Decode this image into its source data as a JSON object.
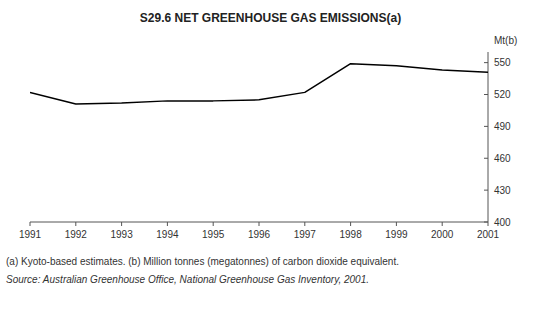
{
  "chart_data": {
    "type": "line",
    "title": "S29.6   NET GREENHOUSE GAS EMISSIONS(a)",
    "y_label": "Mt(b)",
    "annotations": [
      "(a) Kyoto-based estimates.  (b) Million tonnes (megatonnes) of carbon dioxide equivalent.",
      "Source: Australian Greenhouse Office, National Greenhouse Gas Inventory, 2001."
    ],
    "x": [
      1991,
      1992,
      1993,
      1994,
      1995,
      1996,
      1997,
      1998,
      1999,
      2000,
      2001
    ],
    "values": [
      522,
      511,
      512,
      514,
      514,
      515,
      522,
      549,
      547,
      543,
      541
    ],
    "color": "#000000",
    "xlim": [
      1991,
      2001
    ],
    "xticks": [
      1991,
      1992,
      1993,
      1994,
      1995,
      1996,
      1997,
      1998,
      1999,
      2000,
      2001
    ],
    "ylim": [
      400,
      560
    ],
    "yticks": [
      400,
      430,
      460,
      490,
      520,
      550
    ],
    "grid": false
  }
}
